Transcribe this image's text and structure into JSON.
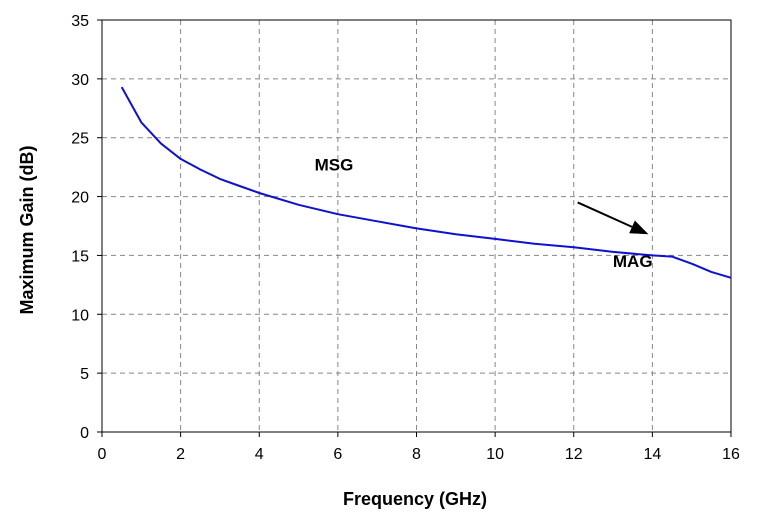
{
  "chart_data": {
    "type": "line",
    "title": "",
    "xlabel": "Frequency (GHz)",
    "ylabel": "Maximum Gain (dB)",
    "xlim": [
      0,
      16
    ],
    "ylim": [
      0,
      35
    ],
    "x_ticks": [
      0,
      2,
      4,
      6,
      8,
      10,
      12,
      14,
      16
    ],
    "y_ticks": [
      0,
      5,
      10,
      15,
      20,
      25,
      30,
      35
    ],
    "x_tick_labels": [
      "0",
      "2",
      "4",
      "6",
      "8",
      "10",
      "12",
      "14",
      "16"
    ],
    "y_tick_labels": [
      "0",
      "5",
      "10",
      "15",
      "20",
      "25",
      "30",
      "35"
    ],
    "grid": true,
    "grid_style": "dashed",
    "series": [
      {
        "color": "#1010d0",
        "x": [
          0.5,
          1.0,
          1.5,
          2.0,
          2.5,
          3.0,
          3.5,
          4.0,
          5.0,
          6.0,
          7.0,
          8.0,
          9.0,
          10.0,
          11.0,
          12.0,
          13.0,
          14.0,
          14.5,
          15.0,
          15.5,
          16.0
        ],
        "y": [
          29.3,
          26.3,
          24.5,
          23.2,
          22.3,
          21.5,
          20.9,
          20.3,
          19.3,
          18.5,
          17.9,
          17.3,
          16.8,
          16.4,
          16.0,
          15.7,
          15.3,
          15.0,
          14.9,
          14.3,
          13.6,
          13.1
        ]
      }
    ],
    "annotations": [
      {
        "text": "MSG",
        "x": 5.9,
        "y": 22.2
      },
      {
        "text": "MAG",
        "x": 13.5,
        "y": 14.0
      }
    ],
    "arrow": {
      "from": [
        12.1,
        19.5
      ],
      "to": [
        13.9,
        16.8
      ]
    }
  },
  "colors": {
    "line": "#1010d0",
    "grid": "#888888",
    "axis": "#000000"
  }
}
